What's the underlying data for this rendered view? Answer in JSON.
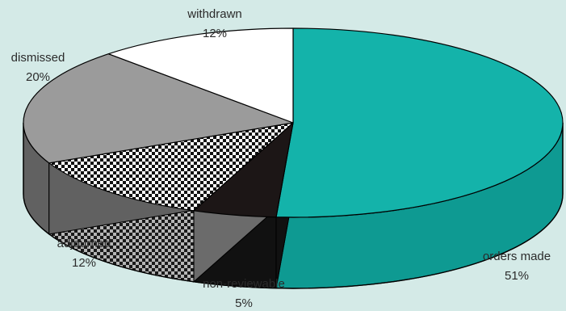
{
  "chart_data": {
    "type": "pie",
    "style": "3d",
    "title": "",
    "slices": [
      {
        "label": "orders made",
        "value": 51,
        "value_label": "51%",
        "color": "#14b3aa",
        "side_color": "#0e9a92"
      },
      {
        "label": "non-reviewable",
        "value": 5,
        "value_label": "5%",
        "color": "#1c1616",
        "side_color": "#111111"
      },
      {
        "label": "adjourned",
        "value": 12,
        "value_label": "12%",
        "color": "#ffffff",
        "pattern": "checker",
        "side_color": "#6b6b6b"
      },
      {
        "label": "dismissed",
        "value": 20,
        "value_label": "20%",
        "color": "#9b9b9b",
        "side_color": "#616161"
      },
      {
        "label": "withdrawn",
        "value": 12,
        "value_label": "12%",
        "color": "#ffffff",
        "side_color": "#dddddd"
      }
    ],
    "start_angle_deg": -90,
    "direction": "clockwise",
    "legend": "none"
  }
}
